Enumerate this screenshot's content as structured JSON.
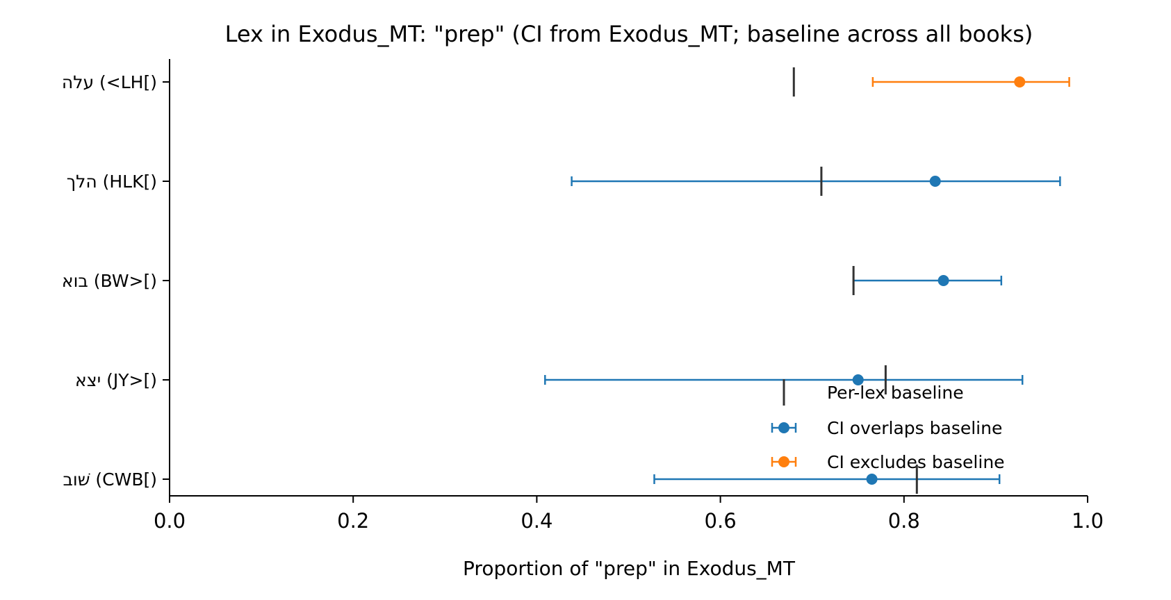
{
  "chart_data": {
    "type": "errorbar",
    "title": "Lex in Exodus_MT: \"prep\" (CI from Exodus_MT; baseline across all books)",
    "xlabel": "Proportion of \"prep\" in Exodus_MT",
    "ylabel": "",
    "xlim": [
      0.0,
      1.0
    ],
    "xticks": [
      "0.0",
      "0.2",
      "0.4",
      "0.6",
      "0.8",
      "1.0"
    ],
    "xtick_values": [
      0.0,
      0.2,
      0.4,
      0.6,
      0.8,
      1.0
    ],
    "categories": [
      "עלה (<LH[)",
      "הלך (HLK[)",
      "בוא (BW>[)",
      "יצא (JY>[)",
      "שׁוב (CWB[)"
    ],
    "points": [
      {
        "label": "עלה (<LH[)",
        "value": 0.926,
        "ci_low": 0.766,
        "ci_high": 0.98,
        "baseline": 0.68,
        "status": "excludes"
      },
      {
        "label": "הלך (HLK[)",
        "value": 0.834,
        "ci_low": 0.438,
        "ci_high": 0.97,
        "baseline": 0.71,
        "status": "overlaps"
      },
      {
        "label": "בוא (BW>[)",
        "value": 0.843,
        "ci_low": 0.745,
        "ci_high": 0.906,
        "baseline": 0.745,
        "status": "overlaps"
      },
      {
        "label": "יצא (JY>[)",
        "value": 0.75,
        "ci_low": 0.409,
        "ci_high": 0.929,
        "baseline": 0.78,
        "status": "overlaps"
      },
      {
        "label": "שׁוב (CWB[)",
        "value": 0.765,
        "ci_low": 0.528,
        "ci_high": 0.904,
        "baseline": 0.814,
        "status": "overlaps"
      }
    ],
    "legend": {
      "placement": "lower-right",
      "entries": [
        {
          "key": "baseline",
          "label": "Per-lex baseline"
        },
        {
          "key": "overlaps",
          "label": "CI overlaps baseline"
        },
        {
          "key": "excludes",
          "label": "CI excludes baseline"
        }
      ]
    },
    "colors": {
      "overlaps": "#1f77b4",
      "excludes": "#ff7f0e",
      "baseline": "#333333",
      "axis": "#000000"
    },
    "grid": false
  }
}
